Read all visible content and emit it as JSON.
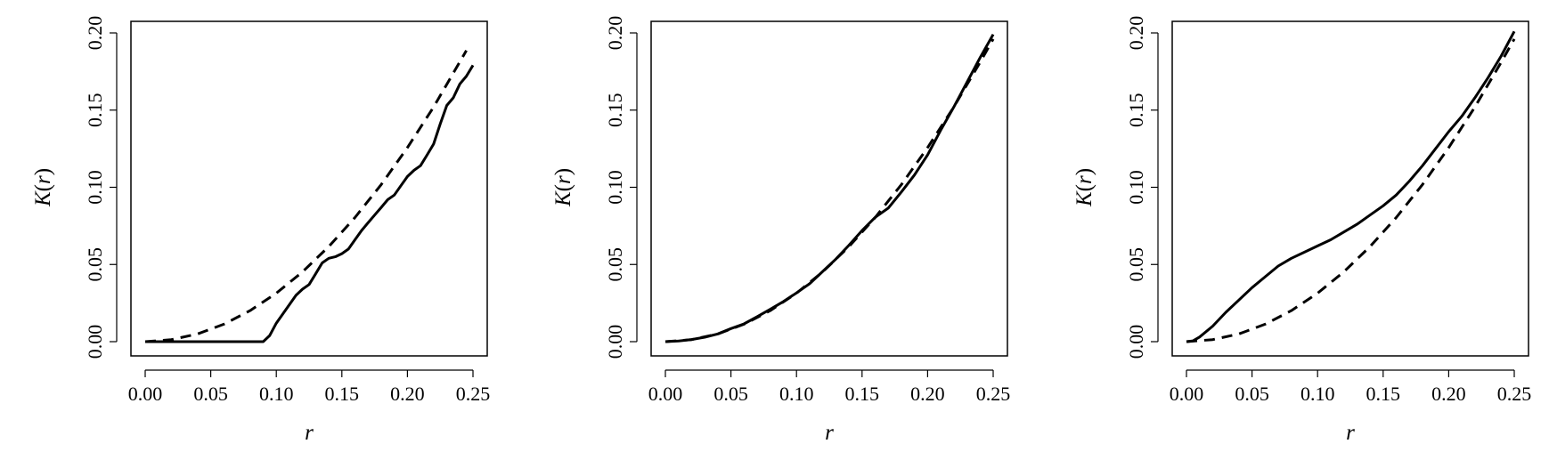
{
  "chart_data": [
    {
      "type": "line",
      "xlabel": "r",
      "ylabel": "K(r)",
      "ylabel_parts": [
        "K",
        "(",
        "r",
        ")"
      ],
      "xlim": [
        0.0,
        0.25
      ],
      "ylim": [
        0.0,
        0.2
      ],
      "xticks": [
        "0.00",
        "0.05",
        "0.10",
        "0.15",
        "0.20",
        "0.25"
      ],
      "yticks": [
        "0.00",
        "0.05",
        "0.10",
        "0.15",
        "0.20"
      ],
      "grid": false,
      "series": [
        {
          "style": "solid",
          "color": "#000000",
          "x": [
            0.0,
            0.02,
            0.04,
            0.06,
            0.08,
            0.09,
            0.095,
            0.1,
            0.105,
            0.11,
            0.115,
            0.12,
            0.125,
            0.13,
            0.135,
            0.14,
            0.145,
            0.15,
            0.155,
            0.16,
            0.165,
            0.17,
            0.175,
            0.18,
            0.185,
            0.19,
            0.195,
            0.2,
            0.205,
            0.21,
            0.215,
            0.22,
            0.225,
            0.23,
            0.235,
            0.24,
            0.245,
            0.25
          ],
          "y": [
            0.0,
            0.0,
            0.0,
            0.0,
            0.0,
            0.0,
            0.004,
            0.012,
            0.018,
            0.024,
            0.03,
            0.034,
            0.037,
            0.044,
            0.051,
            0.054,
            0.055,
            0.057,
            0.06,
            0.066,
            0.072,
            0.077,
            0.082,
            0.087,
            0.092,
            0.095,
            0.101,
            0.107,
            0.111,
            0.114,
            0.121,
            0.128,
            0.141,
            0.153,
            0.158,
            0.167,
            0.172,
            0.179
          ]
        },
        {
          "style": "dashed",
          "color": "#000000",
          "x": [
            0.0,
            0.02,
            0.04,
            0.06,
            0.08,
            0.1,
            0.12,
            0.14,
            0.16,
            0.18,
            0.2,
            0.22,
            0.245
          ],
          "y": [
            0.0,
            0.0013,
            0.005,
            0.0113,
            0.0201,
            0.0314,
            0.0452,
            0.0616,
            0.0804,
            0.1018,
            0.1257,
            0.152,
            0.1886
          ]
        }
      ]
    },
    {
      "type": "line",
      "xlabel": "r",
      "ylabel": "K(r)",
      "ylabel_parts": [
        "K",
        "(",
        "r",
        ")"
      ],
      "xlim": [
        0.0,
        0.25
      ],
      "ylim": [
        0.0,
        0.2
      ],
      "xticks": [
        "0.00",
        "0.05",
        "0.10",
        "0.15",
        "0.20",
        "0.25"
      ],
      "yticks": [
        "0.00",
        "0.05",
        "0.10",
        "0.15",
        "0.20"
      ],
      "grid": false,
      "series": [
        {
          "style": "solid",
          "color": "#000000",
          "x": [
            0.0,
            0.01,
            0.02,
            0.03,
            0.04,
            0.05,
            0.06,
            0.07,
            0.08,
            0.09,
            0.1,
            0.11,
            0.12,
            0.13,
            0.14,
            0.15,
            0.16,
            0.17,
            0.18,
            0.19,
            0.2,
            0.21,
            0.22,
            0.23,
            0.24,
            0.25
          ],
          "y": [
            0.0,
            0.0004,
            0.0014,
            0.0029,
            0.005,
            0.0085,
            0.0115,
            0.0162,
            0.021,
            0.026,
            0.0316,
            0.0375,
            0.0455,
            0.0535,
            0.0625,
            0.072,
            0.0805,
            0.0865,
            0.097,
            0.108,
            0.121,
            0.137,
            0.152,
            0.168,
            0.184,
            0.199
          ]
        },
        {
          "style": "dashed",
          "color": "#000000",
          "x": [
            0.0,
            0.02,
            0.04,
            0.06,
            0.08,
            0.1,
            0.12,
            0.14,
            0.16,
            0.18,
            0.2,
            0.22,
            0.24,
            0.25
          ],
          "y": [
            0.0,
            0.0013,
            0.005,
            0.0113,
            0.0201,
            0.0314,
            0.0452,
            0.0616,
            0.0804,
            0.1018,
            0.1257,
            0.152,
            0.181,
            0.196
          ]
        }
      ]
    },
    {
      "type": "line",
      "xlabel": "r",
      "ylabel": "K(r)",
      "ylabel_parts": [
        "K",
        "(",
        "r",
        ")"
      ],
      "xlim": [
        0.0,
        0.25
      ],
      "ylim": [
        0.0,
        0.2
      ],
      "xticks": [
        "0.00",
        "0.05",
        "0.10",
        "0.15",
        "0.20",
        "0.25"
      ],
      "yticks": [
        "0.00",
        "0.05",
        "0.10",
        "0.15",
        "0.20"
      ],
      "grid": false,
      "series": [
        {
          "style": "solid",
          "color": "#000000",
          "x": [
            0.0,
            0.005,
            0.01,
            0.02,
            0.03,
            0.04,
            0.05,
            0.06,
            0.07,
            0.08,
            0.09,
            0.1,
            0.11,
            0.12,
            0.13,
            0.14,
            0.15,
            0.16,
            0.17,
            0.18,
            0.19,
            0.2,
            0.21,
            0.22,
            0.23,
            0.24,
            0.25
          ],
          "y": [
            0.0,
            0.0005,
            0.003,
            0.01,
            0.019,
            0.027,
            0.035,
            0.042,
            0.049,
            0.054,
            0.058,
            0.062,
            0.066,
            0.071,
            0.076,
            0.082,
            0.088,
            0.095,
            0.104,
            0.114,
            0.125,
            0.136,
            0.146,
            0.158,
            0.171,
            0.185,
            0.201
          ]
        },
        {
          "style": "dashed",
          "color": "#000000",
          "x": [
            0.0,
            0.02,
            0.04,
            0.06,
            0.08,
            0.1,
            0.12,
            0.14,
            0.16,
            0.18,
            0.2,
            0.22,
            0.24,
            0.25
          ],
          "y": [
            0.0,
            0.0013,
            0.005,
            0.0113,
            0.0201,
            0.0314,
            0.0452,
            0.0616,
            0.0804,
            0.1018,
            0.1257,
            0.152,
            0.181,
            0.196
          ]
        }
      ]
    }
  ]
}
